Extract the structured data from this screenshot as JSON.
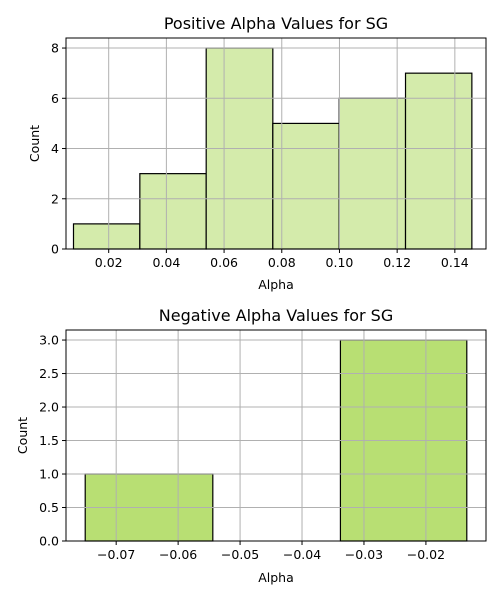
{
  "chart_data": [
    {
      "type": "bar",
      "title": "Positive Alpha Values for SG",
      "xlabel": "Alpha",
      "ylabel": "Count",
      "color": "#d4ebab",
      "grid": true,
      "xlim": [
        0.0052,
        0.1508
      ],
      "ylim": [
        0,
        8.4
      ],
      "xticks": [
        0.02,
        0.04,
        0.06,
        0.08,
        0.1,
        0.12,
        0.14
      ],
      "xtick_labels": [
        "0.02",
        "0.04",
        "0.06",
        "0.08",
        "0.10",
        "0.12",
        "0.14"
      ],
      "yticks": [
        0,
        2,
        4,
        6,
        8
      ],
      "ytick_labels": [
        "0",
        "2",
        "4",
        "6",
        "8"
      ],
      "bins": [
        {
          "x0": 0.0078,
          "x1": 0.0308,
          "count": 1
        },
        {
          "x0": 0.0308,
          "x1": 0.0538,
          "count": 3
        },
        {
          "x0": 0.0538,
          "x1": 0.0769,
          "count": 8
        },
        {
          "x0": 0.0769,
          "x1": 0.0999,
          "count": 5
        },
        {
          "x0": 0.0999,
          "x1": 0.1229,
          "count": 6
        },
        {
          "x0": 0.1229,
          "x1": 0.1459,
          "count": 7
        }
      ]
    },
    {
      "type": "bar",
      "title": "Negative Alpha Values for SG",
      "xlabel": "Alpha",
      "ylabel": "Count",
      "color": "#b8df73",
      "grid": true,
      "xlim": [
        -0.0781,
        -0.0103
      ],
      "ylim": [
        0,
        3.15
      ],
      "xticks": [
        -0.07,
        -0.06,
        -0.05,
        -0.04,
        -0.03,
        -0.02
      ],
      "xtick_labels": [
        "−0.07",
        "−0.06",
        "−0.05",
        "−0.04",
        "−0.03",
        "−0.02"
      ],
      "yticks": [
        0,
        0.5,
        1.0,
        1.5,
        2.0,
        2.5,
        3.0
      ],
      "ytick_labels": [
        "0.0",
        "0.5",
        "1.0",
        "1.5",
        "2.0",
        "2.5",
        "3.0"
      ],
      "bins": [
        {
          "x0": -0.075,
          "x1": -0.0544,
          "count": 1
        },
        {
          "x0": -0.0544,
          "x1": -0.0338,
          "count": 0
        },
        {
          "x0": -0.0338,
          "x1": -0.0134,
          "count": 3
        }
      ]
    }
  ]
}
